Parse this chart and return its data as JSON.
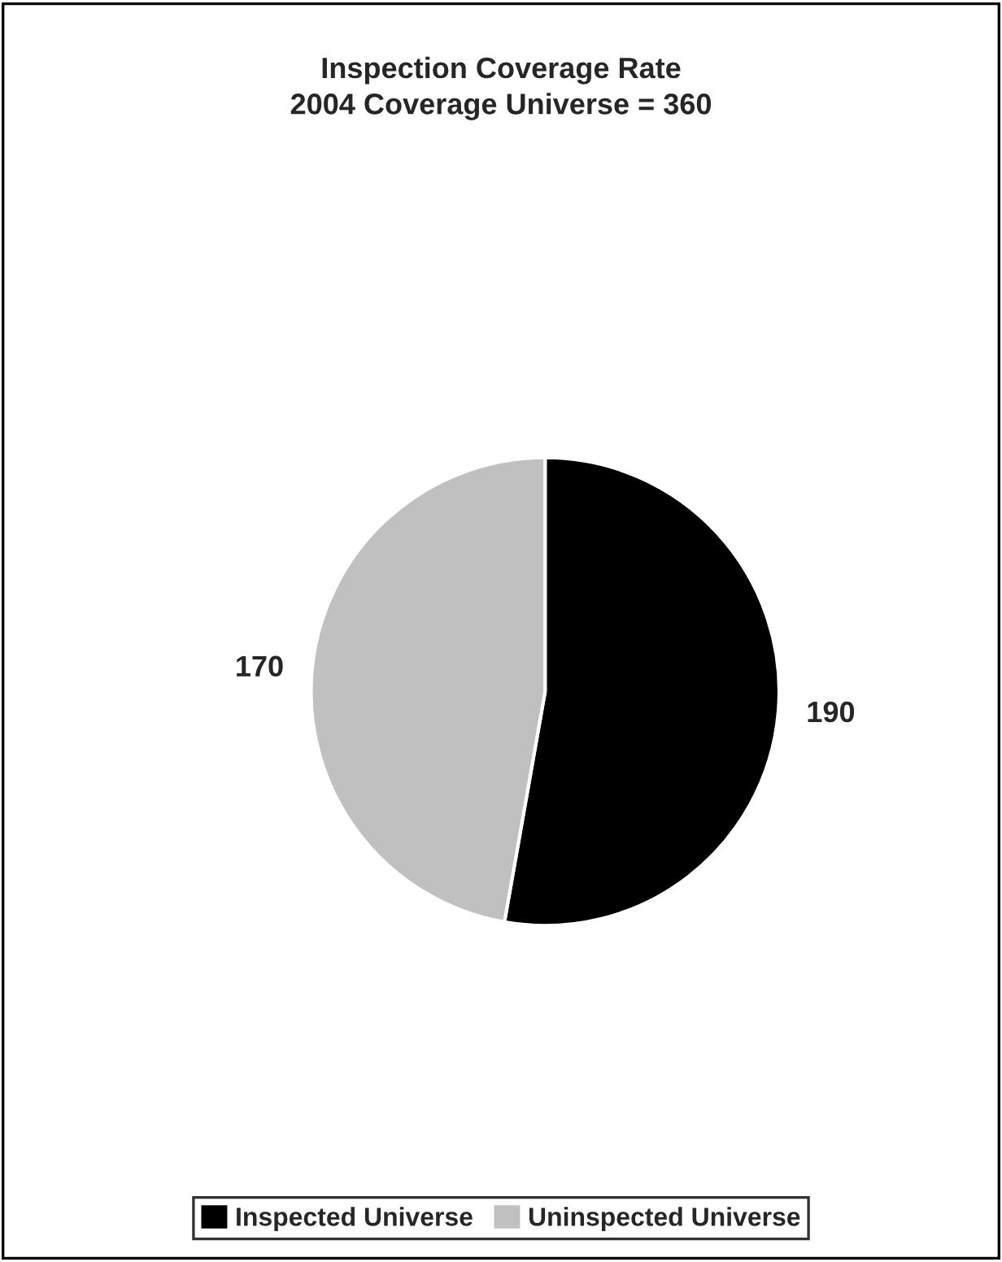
{
  "chart_data": {
    "type": "pie",
    "title": "Inspection Coverage Rate",
    "subtitle": "2004 Coverage Universe = 360",
    "categories": [
      "Inspected Universe",
      "Uninspected Universe"
    ],
    "values": [
      190,
      170
    ],
    "colors": [
      "#000000",
      "#c0c0c0"
    ],
    "data_labels": true,
    "legend": "bottom"
  }
}
